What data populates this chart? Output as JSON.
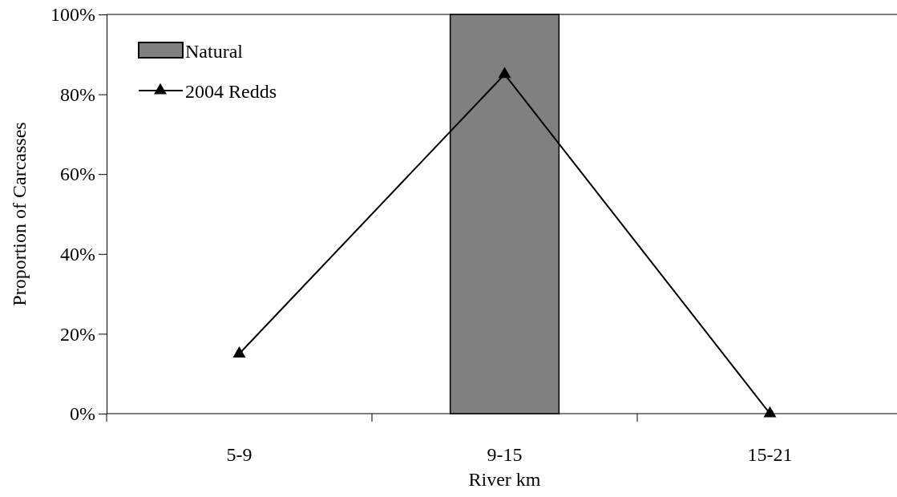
{
  "chart_data": {
    "type": "bar",
    "xlabel": "River km",
    "ylabel": "Proportion of Carcasses",
    "categories": [
      "5-9",
      "9-15",
      "15-21"
    ],
    "series": [
      {
        "name": "Natural",
        "color": "#808080",
        "values": [
          0,
          100,
          0
        ]
      },
      {
        "name": "2004 Redds",
        "type": "line",
        "color": "#000000",
        "marker": "triangle",
        "values": [
          15,
          85,
          0
        ]
      }
    ],
    "ylim": [
      0,
      100
    ],
    "yticks": [
      {
        "value": 0,
        "label": "0%"
      },
      {
        "value": 20,
        "label": "20%"
      },
      {
        "value": 40,
        "label": "40%"
      },
      {
        "value": 60,
        "label": "60%"
      },
      {
        "value": 80,
        "label": "80%"
      },
      {
        "value": 100,
        "label": "100%"
      }
    ],
    "grid": false,
    "legend": "top left"
  }
}
